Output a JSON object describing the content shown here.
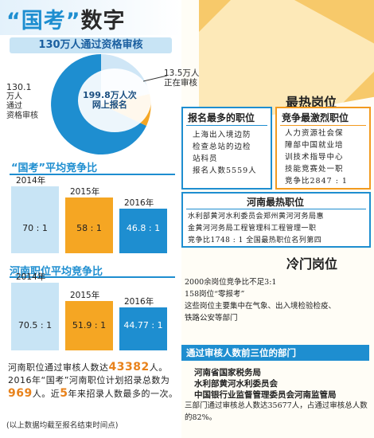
{
  "title": {
    "prefix": "“国考”",
    "suffix": "数字"
  },
  "review_banner": "130万人通过资格审核",
  "pie": {
    "left_label": [
      "130.1",
      "万人",
      "通过",
      "资格审核"
    ],
    "center_label": [
      "199.8万人次",
      "网上报名"
    ],
    "right_label": [
      "13.5万人",
      "正在审核"
    ],
    "colors": {
      "passed": "#1e8ed0",
      "online": "#cfe6f6",
      "pending": "#f5a623"
    }
  },
  "national": {
    "title": "“国考”平均竞争比",
    "chart_data": {
      "type": "bar",
      "categories": [
        "2014年",
        "2015年",
        "2016年"
      ],
      "values": [
        70,
        58,
        46.8
      ],
      "value_labels": [
        "70 : 1",
        "58 : 1",
        "46.8 : 1"
      ]
    }
  },
  "henan": {
    "title": "河南职位平均竞争比",
    "chart_data": {
      "type": "bar",
      "categories": [
        "2014年",
        "2015年",
        "2016年"
      ],
      "values": [
        70.5,
        51.9,
        44.77
      ],
      "value_labels": [
        "70.5 : 1",
        "51.9 : 1",
        "44.77 : 1"
      ]
    }
  },
  "bar_colors": [
    "#c8e4f5",
    "#f5a623",
    "#1e8ed0"
  ],
  "summary": {
    "p1": "河南职位通过审核人数达",
    "n1": "43382",
    "p2": "人。2016年“国考”河南职位计划招录总数为",
    "n2": "969",
    "p3": "人。近",
    "n3": "5",
    "p4": "年来招录人数最多的一次。"
  },
  "note": "(以上数据均截至报名结束时间点)",
  "hot": {
    "heading": "最热岗位",
    "most_applicants": {
      "title": "报名最多的职位",
      "lines": [
        "上海出入境边防",
        "检查总站的边检",
        "站科员",
        "报名人数5559人"
      ]
    },
    "most_competitive": {
      "title": "竞争最激烈职位",
      "lines": [
        "人力资源社会保",
        "障部中国就业培",
        "训技术指导中心",
        "技能竞赛处一职",
        "竞争比2847 : 1"
      ]
    },
    "henan_hot": {
      "title": "河南最热职位",
      "lines": [
        "水利部黄河水利委员会郑州黄河河务局惠",
        "金黄河河务局工程管理科工程管理一职",
        "竞争比1748 : 1    全国最热职位名列第四"
      ]
    }
  },
  "cold": {
    "heading": "冷门岗位",
    "lines": [
      "2000余岗位竞争比不足3:1",
      "158岗位“零报考”",
      "这些岗位主要集中在气象、出入境检验检疫、",
      "铁路公安等部门"
    ]
  },
  "departments": {
    "heading": "通过审核人数前三位的部门",
    "items": [
      "河南省国家税务局",
      "水利部黄河水利委员会",
      "中国银行业监督管理委员会河南监管局"
    ],
    "note": "三部门通过审核总人数达35677人，占通过审核总人数的82%。"
  }
}
